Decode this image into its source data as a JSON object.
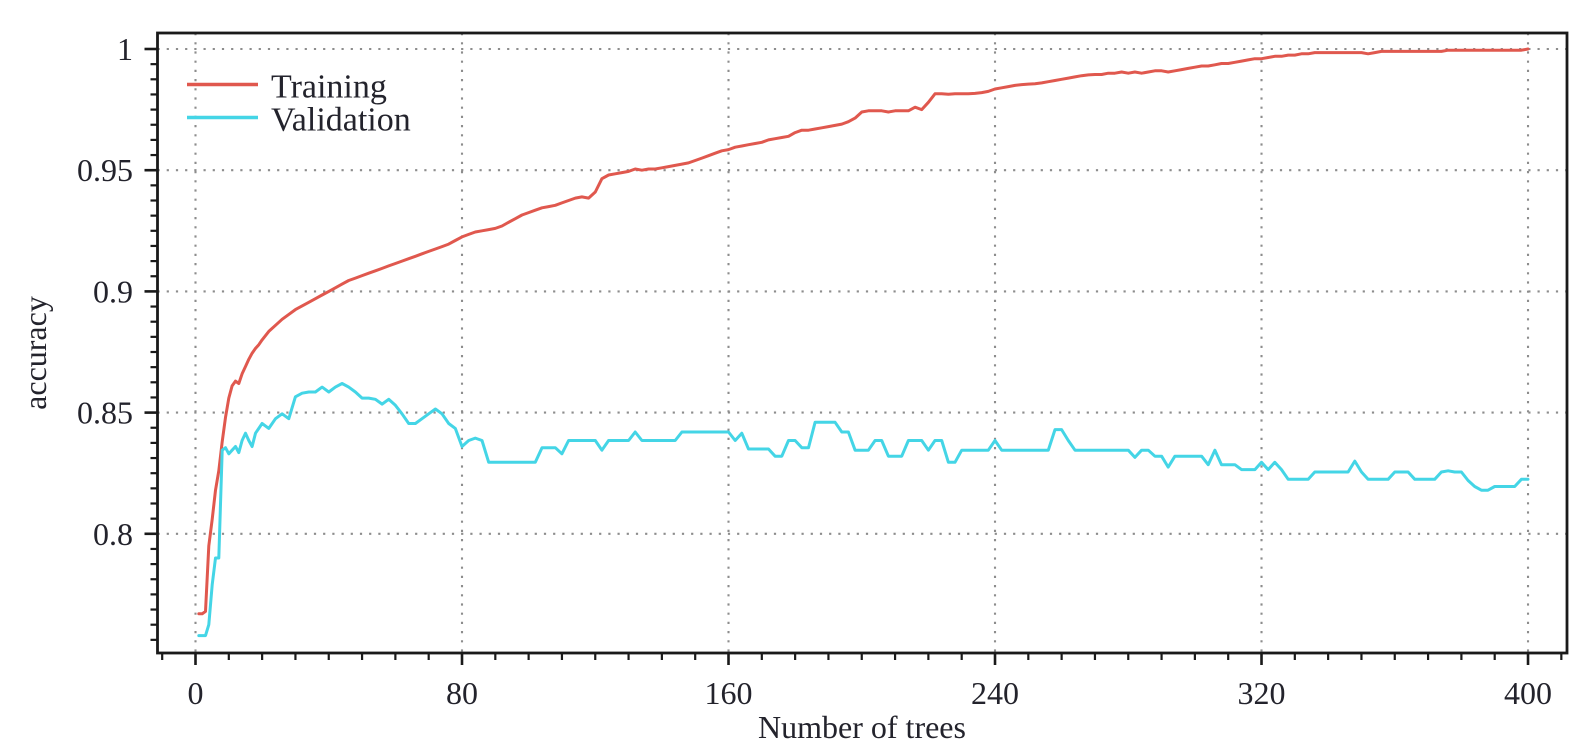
{
  "figure": {
    "background": "#ffffff",
    "axis_color": "#1a1a1a",
    "grid_color": "#8d8d8d",
    "text_color": "#23232c"
  },
  "chart_data": {
    "type": "line",
    "title": "",
    "xlabel": "Number of trees",
    "ylabel": "accuracy",
    "xlim": [
      -13,
      411
    ],
    "ylim": [
      0.751,
      1.006
    ],
    "xticks": [
      0,
      80,
      160,
      240,
      320,
      400
    ],
    "xtick_labels": [
      "0",
      "80",
      "160",
      "240",
      "320",
      "400"
    ],
    "yticks": [
      1.0,
      0.95,
      0.9,
      0.85,
      0.8
    ],
    "ytick_labels": [
      "1",
      "0.95",
      "0.9",
      "0.85",
      "0.8"
    ],
    "minor_ticks_per_major": 7,
    "grid": "dotted-major-both-axes",
    "legend_position": "top-left",
    "x": [
      1,
      2,
      3,
      4,
      5,
      6,
      7,
      8,
      9,
      10,
      11,
      12,
      13,
      14,
      15,
      16,
      17,
      18,
      19,
      20,
      22,
      24,
      26,
      28,
      30,
      32,
      34,
      36,
      38,
      40,
      42,
      44,
      46,
      48,
      50,
      52,
      54,
      56,
      58,
      60,
      62,
      64,
      66,
      68,
      70,
      72,
      74,
      76,
      78,
      80,
      82,
      84,
      86,
      88,
      90,
      92,
      94,
      96,
      98,
      100,
      102,
      104,
      106,
      108,
      110,
      112,
      114,
      116,
      118,
      120,
      122,
      124,
      126,
      128,
      130,
      132,
      134,
      136,
      138,
      140,
      142,
      144,
      146,
      148,
      150,
      152,
      154,
      156,
      158,
      160,
      162,
      164,
      166,
      168,
      170,
      172,
      174,
      176,
      178,
      180,
      182,
      184,
      186,
      188,
      190,
      192,
      194,
      196,
      198,
      200,
      202,
      204,
      206,
      208,
      210,
      212,
      214,
      216,
      218,
      220,
      222,
      224,
      226,
      228,
      230,
      232,
      234,
      236,
      238,
      240,
      242,
      244,
      246,
      248,
      250,
      252,
      254,
      256,
      258,
      260,
      262,
      264,
      266,
      268,
      270,
      272,
      274,
      276,
      278,
      280,
      282,
      284,
      286,
      288,
      290,
      292,
      294,
      296,
      298,
      300,
      302,
      304,
      306,
      308,
      310,
      312,
      314,
      316,
      318,
      320,
      322,
      324,
      326,
      328,
      330,
      332,
      334,
      336,
      338,
      340,
      342,
      344,
      346,
      348,
      350,
      352,
      354,
      356,
      358,
      360,
      362,
      364,
      366,
      368,
      370,
      372,
      374,
      376,
      378,
      380,
      382,
      384,
      386,
      388,
      390,
      392,
      394,
      396,
      398,
      400
    ],
    "series": [
      {
        "name": "Training",
        "color": "#e0584e",
        "y": [
          0.767,
          0.767,
          0.768,
          0.795,
          0.806,
          0.818,
          0.826,
          0.838,
          0.848,
          0.856,
          0.861,
          0.863,
          0.862,
          0.866,
          0.869,
          0.872,
          0.8745,
          0.8765,
          0.878,
          0.88,
          0.8835,
          0.886,
          0.8885,
          0.8905,
          0.8925,
          0.894,
          0.8955,
          0.897,
          0.8985,
          0.9,
          0.9015,
          0.903,
          0.9045,
          0.9055,
          0.9065,
          0.9075,
          0.9085,
          0.9095,
          0.9105,
          0.9115,
          0.9125,
          0.9135,
          0.9145,
          0.9155,
          0.9165,
          0.9175,
          0.9185,
          0.9195,
          0.921,
          0.9225,
          0.9235,
          0.9245,
          0.925,
          0.9255,
          0.926,
          0.927,
          0.9285,
          0.93,
          0.9315,
          0.9325,
          0.9335,
          0.9345,
          0.935,
          0.9355,
          0.9365,
          0.9375,
          0.9385,
          0.939,
          0.9385,
          0.941,
          0.9465,
          0.948,
          0.9485,
          0.949,
          0.9495,
          0.9505,
          0.95,
          0.9505,
          0.9505,
          0.951,
          0.9515,
          0.952,
          0.9525,
          0.953,
          0.954,
          0.955,
          0.956,
          0.957,
          0.958,
          0.9585,
          0.9595,
          0.96,
          0.9605,
          0.961,
          0.9615,
          0.9625,
          0.963,
          0.9635,
          0.964,
          0.9655,
          0.9665,
          0.9665,
          0.967,
          0.9675,
          0.968,
          0.9685,
          0.969,
          0.97,
          0.9715,
          0.974,
          0.9745,
          0.9745,
          0.9745,
          0.974,
          0.9745,
          0.9745,
          0.9745,
          0.976,
          0.975,
          0.978,
          0.9815,
          0.9815,
          0.9813,
          0.9815,
          0.9815,
          0.9815,
          0.9817,
          0.982,
          0.9825,
          0.9835,
          0.984,
          0.9845,
          0.985,
          0.9853,
          0.9855,
          0.9857,
          0.986,
          0.9865,
          0.987,
          0.9875,
          0.988,
          0.9885,
          0.989,
          0.9893,
          0.9895,
          0.9895,
          0.99,
          0.99,
          0.9905,
          0.99,
          0.9905,
          0.99,
          0.9905,
          0.991,
          0.991,
          0.9905,
          0.991,
          0.9915,
          0.992,
          0.9925,
          0.993,
          0.993,
          0.9935,
          0.994,
          0.994,
          0.9945,
          0.995,
          0.9955,
          0.996,
          0.996,
          0.9965,
          0.997,
          0.997,
          0.9975,
          0.9975,
          0.998,
          0.998,
          0.9985,
          0.9985,
          0.9985,
          0.9985,
          0.9985,
          0.9985,
          0.9985,
          0.9985,
          0.998,
          0.9985,
          0.999,
          0.999,
          0.999,
          0.999,
          0.999,
          0.999,
          0.999,
          0.999,
          0.999,
          0.999,
          0.9995,
          0.9995,
          0.9995,
          0.9995,
          0.9995,
          0.9995,
          0.9995,
          0.9995,
          0.9995,
          0.9995,
          0.9995,
          0.9995,
          1.0
        ]
      },
      {
        "name": "Validation",
        "color": "#44d5e6",
        "y": [
          0.758,
          0.758,
          0.758,
          0.7625,
          0.779,
          0.79,
          0.79,
          0.8345,
          0.8355,
          0.833,
          0.8345,
          0.836,
          0.8335,
          0.8385,
          0.8415,
          0.8385,
          0.836,
          0.8415,
          0.8435,
          0.8455,
          0.8435,
          0.8475,
          0.8495,
          0.8475,
          0.8565,
          0.858,
          0.8585,
          0.8585,
          0.8605,
          0.8585,
          0.8605,
          0.862,
          0.8605,
          0.8585,
          0.856,
          0.856,
          0.8555,
          0.8535,
          0.8555,
          0.853,
          0.8495,
          0.8455,
          0.8455,
          0.8475,
          0.8495,
          0.8515,
          0.8495,
          0.8455,
          0.8435,
          0.836,
          0.8385,
          0.8395,
          0.8385,
          0.8295,
          0.8295,
          0.8295,
          0.8295,
          0.8295,
          0.8295,
          0.8295,
          0.8295,
          0.8355,
          0.8355,
          0.8355,
          0.833,
          0.8385,
          0.8385,
          0.8385,
          0.8385,
          0.8385,
          0.8345,
          0.8385,
          0.8385,
          0.8385,
          0.8385,
          0.842,
          0.8385,
          0.8385,
          0.8385,
          0.8385,
          0.8385,
          0.8385,
          0.842,
          0.842,
          0.842,
          0.842,
          0.842,
          0.842,
          0.842,
          0.842,
          0.8385,
          0.8415,
          0.835,
          0.835,
          0.835,
          0.835,
          0.832,
          0.832,
          0.8385,
          0.8385,
          0.8355,
          0.8355,
          0.846,
          0.846,
          0.846,
          0.846,
          0.842,
          0.842,
          0.8345,
          0.8345,
          0.8345,
          0.8385,
          0.8385,
          0.832,
          0.832,
          0.832,
          0.8385,
          0.8385,
          0.8385,
          0.8345,
          0.8385,
          0.8385,
          0.8295,
          0.8295,
          0.8345,
          0.8345,
          0.8345,
          0.8345,
          0.8345,
          0.8385,
          0.8345,
          0.8345,
          0.8345,
          0.8345,
          0.8345,
          0.8345,
          0.8345,
          0.8345,
          0.843,
          0.843,
          0.8385,
          0.8345,
          0.8345,
          0.8345,
          0.8345,
          0.8345,
          0.8345,
          0.8345,
          0.8345,
          0.8345,
          0.8315,
          0.8345,
          0.8345,
          0.832,
          0.832,
          0.8275,
          0.832,
          0.832,
          0.832,
          0.832,
          0.832,
          0.8285,
          0.8345,
          0.8285,
          0.8285,
          0.8285,
          0.8265,
          0.8265,
          0.8265,
          0.8295,
          0.8265,
          0.8295,
          0.8265,
          0.8225,
          0.8225,
          0.8225,
          0.8225,
          0.8255,
          0.8255,
          0.8255,
          0.8255,
          0.8255,
          0.8255,
          0.83,
          0.8255,
          0.8225,
          0.8225,
          0.8225,
          0.8225,
          0.8255,
          0.8255,
          0.8255,
          0.8225,
          0.8225,
          0.8225,
          0.8225,
          0.8255,
          0.826,
          0.8255,
          0.8255,
          0.822,
          0.8195,
          0.818,
          0.818,
          0.8195,
          0.8195,
          0.8195,
          0.8195,
          0.8225,
          0.8225
        ]
      }
    ]
  }
}
